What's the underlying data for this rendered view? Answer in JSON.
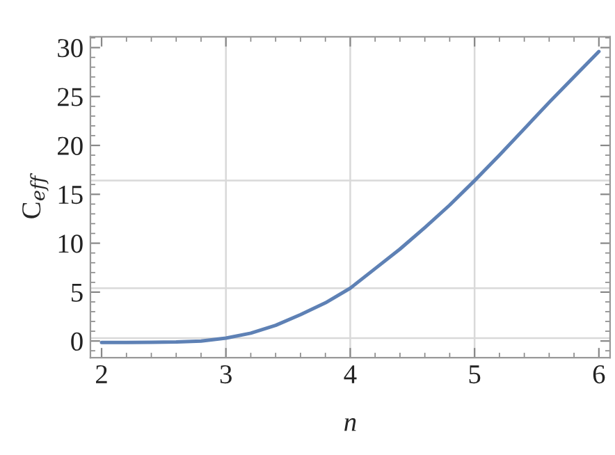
{
  "chart_data": {
    "type": "line",
    "xlabel": "n",
    "ylabel": "C$_{eff}$",
    "x": [
      2,
      2.2,
      2.4,
      2.6,
      2.8,
      3,
      3.2,
      3.4,
      3.6,
      3.8,
      4,
      4.2,
      4.4,
      4.6,
      4.8,
      5,
      5.2,
      5.4,
      5.6,
      5.8,
      6
    ],
    "series": [
      {
        "color": "#5e81b5",
        "values": [
          -0.15,
          -0.15,
          -0.14,
          -0.1,
          0.0,
          0.3,
          0.8,
          1.6,
          2.7,
          3.9,
          5.4,
          7.4,
          9.4,
          11.6,
          13.9,
          16.4,
          19.0,
          21.7,
          24.4,
          27.0,
          29.6
        ]
      }
    ],
    "xlim": [
      1.91,
      6.09
    ],
    "ylim": [
      -1.7,
      31.1
    ],
    "xticks": [
      2,
      3,
      4,
      5,
      6
    ],
    "yticks": [
      0,
      5,
      10,
      15,
      20,
      25,
      30
    ],
    "ref_lines": [
      {
        "axis": "x",
        "value": 3,
        "color": "#d9d9d9"
      },
      {
        "axis": "x",
        "value": 4,
        "color": "#d9d9d9"
      },
      {
        "axis": "x",
        "value": 5,
        "color": "#d9d9d9"
      },
      {
        "axis": "y",
        "value": 0.3,
        "color": "#d9d9d9"
      },
      {
        "axis": "y",
        "value": 5.4,
        "color": "#d9d9d9"
      },
      {
        "axis": "y",
        "value": 16.4,
        "color": "#d9d9d9"
      }
    ],
    "grid": false,
    "legend": false
  }
}
